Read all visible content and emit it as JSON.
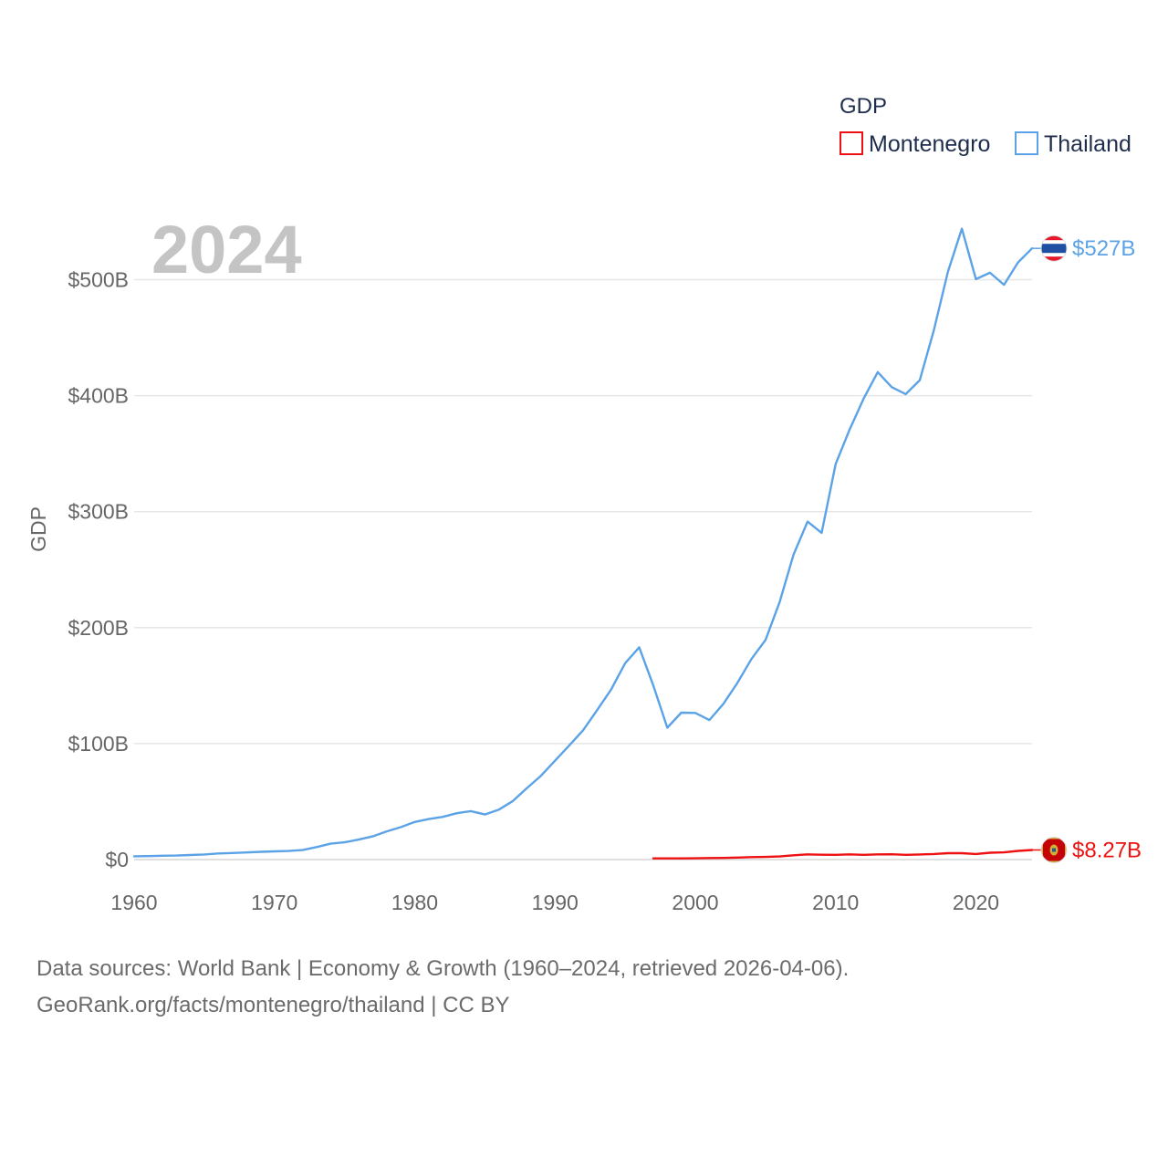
{
  "chart_data": {
    "type": "line",
    "title": "GDP",
    "year_label": "2024",
    "ylabel": "GDP",
    "xlabel": "",
    "xlim": [
      1960,
      2024
    ],
    "ylim": [
      0,
      540
    ],
    "y_unit": "billion USD",
    "x_ticks": [
      1960,
      1970,
      1980,
      1990,
      2000,
      2010,
      2020
    ],
    "x_tick_labels": [
      "1960",
      "1970",
      "1980",
      "1990",
      "2000",
      "2010",
      "2020"
    ],
    "y_ticks": [
      0,
      100,
      200,
      300,
      400,
      500
    ],
    "y_tick_labels": [
      "$0",
      "$100B",
      "$200B",
      "$300B",
      "$400B",
      "$500B"
    ],
    "grid": true,
    "legend": {
      "title": "GDP",
      "position": "top-right",
      "entries": [
        {
          "name": "Montenegro",
          "color": "#ee1111"
        },
        {
          "name": "Thailand",
          "color": "#5ba3e6"
        }
      ]
    },
    "series": [
      {
        "name": "Thailand",
        "color": "#5ba3e6",
        "end_label": "$527B",
        "x": [
          1960,
          1961,
          1962,
          1963,
          1964,
          1965,
          1966,
          1967,
          1968,
          1969,
          1970,
          1971,
          1972,
          1973,
          1974,
          1975,
          1976,
          1977,
          1978,
          1979,
          1980,
          1981,
          1982,
          1983,
          1984,
          1985,
          1986,
          1987,
          1988,
          1989,
          1990,
          1991,
          1992,
          1993,
          1994,
          1995,
          1996,
          1997,
          1998,
          1999,
          2000,
          2001,
          2002,
          2003,
          2004,
          2005,
          2006,
          2007,
          2008,
          2009,
          2010,
          2011,
          2012,
          2013,
          2014,
          2015,
          2016,
          2017,
          2018,
          2019,
          2020,
          2021,
          2022,
          2023,
          2024
        ],
        "values": [
          2.8,
          3.0,
          3.3,
          3.5,
          3.9,
          4.4,
          5.3,
          5.7,
          6.1,
          6.7,
          7.1,
          7.4,
          8.2,
          10.8,
          13.7,
          14.9,
          17.2,
          20.0,
          24.3,
          27.9,
          32.4,
          34.9,
          36.8,
          40.0,
          41.8,
          38.9,
          43.1,
          50.5,
          61.7,
          72.3,
          85.3,
          98.2,
          111.5,
          128.9,
          146.7,
          169.3,
          183.0,
          150.2,
          113.7,
          126.7,
          126.4,
          120.3,
          134.3,
          152.3,
          172.9,
          189.3,
          221.8,
          262.9,
          291.4,
          281.7,
          341.1,
          370.8,
          397.6,
          420.3,
          407.3,
          401.3,
          413.4,
          456.4,
          506.8,
          544.0,
          500.5,
          506.0,
          495.6,
          514.9,
          527.0
        ]
      },
      {
        "name": "Montenegro",
        "color": "#ee1111",
        "end_label": "$8.27B",
        "x": [
          1997,
          1998,
          1999,
          2000,
          2001,
          2002,
          2003,
          2004,
          2005,
          2006,
          2007,
          2008,
          2009,
          2010,
          2011,
          2012,
          2013,
          2014,
          2015,
          2016,
          2017,
          2018,
          2019,
          2020,
          2021,
          2022,
          2023,
          2024
        ],
        "values": [
          1.0,
          1.0,
          1.0,
          1.1,
          1.3,
          1.4,
          1.7,
          2.1,
          2.3,
          2.7,
          3.7,
          4.5,
          4.2,
          4.1,
          4.5,
          4.1,
          4.5,
          4.6,
          4.1,
          4.4,
          4.8,
          5.5,
          5.5,
          4.8,
          5.9,
          6.2,
          7.5,
          8.27
        ]
      }
    ]
  },
  "footer": {
    "sources_line": "Data sources: World Bank | Economy & Growth (1960–2024, retrieved 2026-04-06).",
    "credit_line": "GeoRank.org/facts/montenegro/thailand | CC BY"
  }
}
